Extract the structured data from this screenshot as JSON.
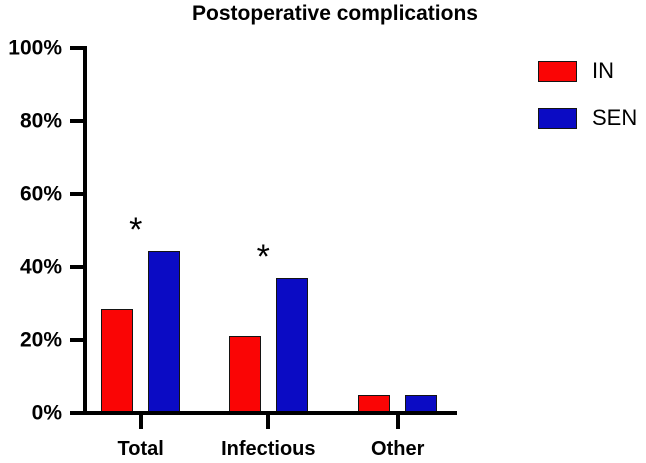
{
  "chart_data": {
    "type": "bar",
    "title": "Postoperative complications",
    "categories": [
      "Total",
      "Infectious",
      "Other"
    ],
    "series": [
      {
        "name": "IN",
        "color": "#fa0505",
        "values": [
          28.5,
          21,
          5
        ]
      },
      {
        "name": "SEN",
        "color": "#0b0bc4",
        "values": [
          44.5,
          37,
          5
        ]
      }
    ],
    "xlabel": "",
    "ylabel": "",
    "ylim": [
      0,
      100
    ],
    "ytick_labels": [
      "0%",
      "20%",
      "40%",
      "60%",
      "80%",
      "100%"
    ],
    "grid": false,
    "legend_position": "right",
    "significance_markers": [
      {
        "category": "Total",
        "symbol": "*"
      },
      {
        "category": "Infectious",
        "symbol": "*"
      }
    ],
    "axis_color": "#000000"
  }
}
